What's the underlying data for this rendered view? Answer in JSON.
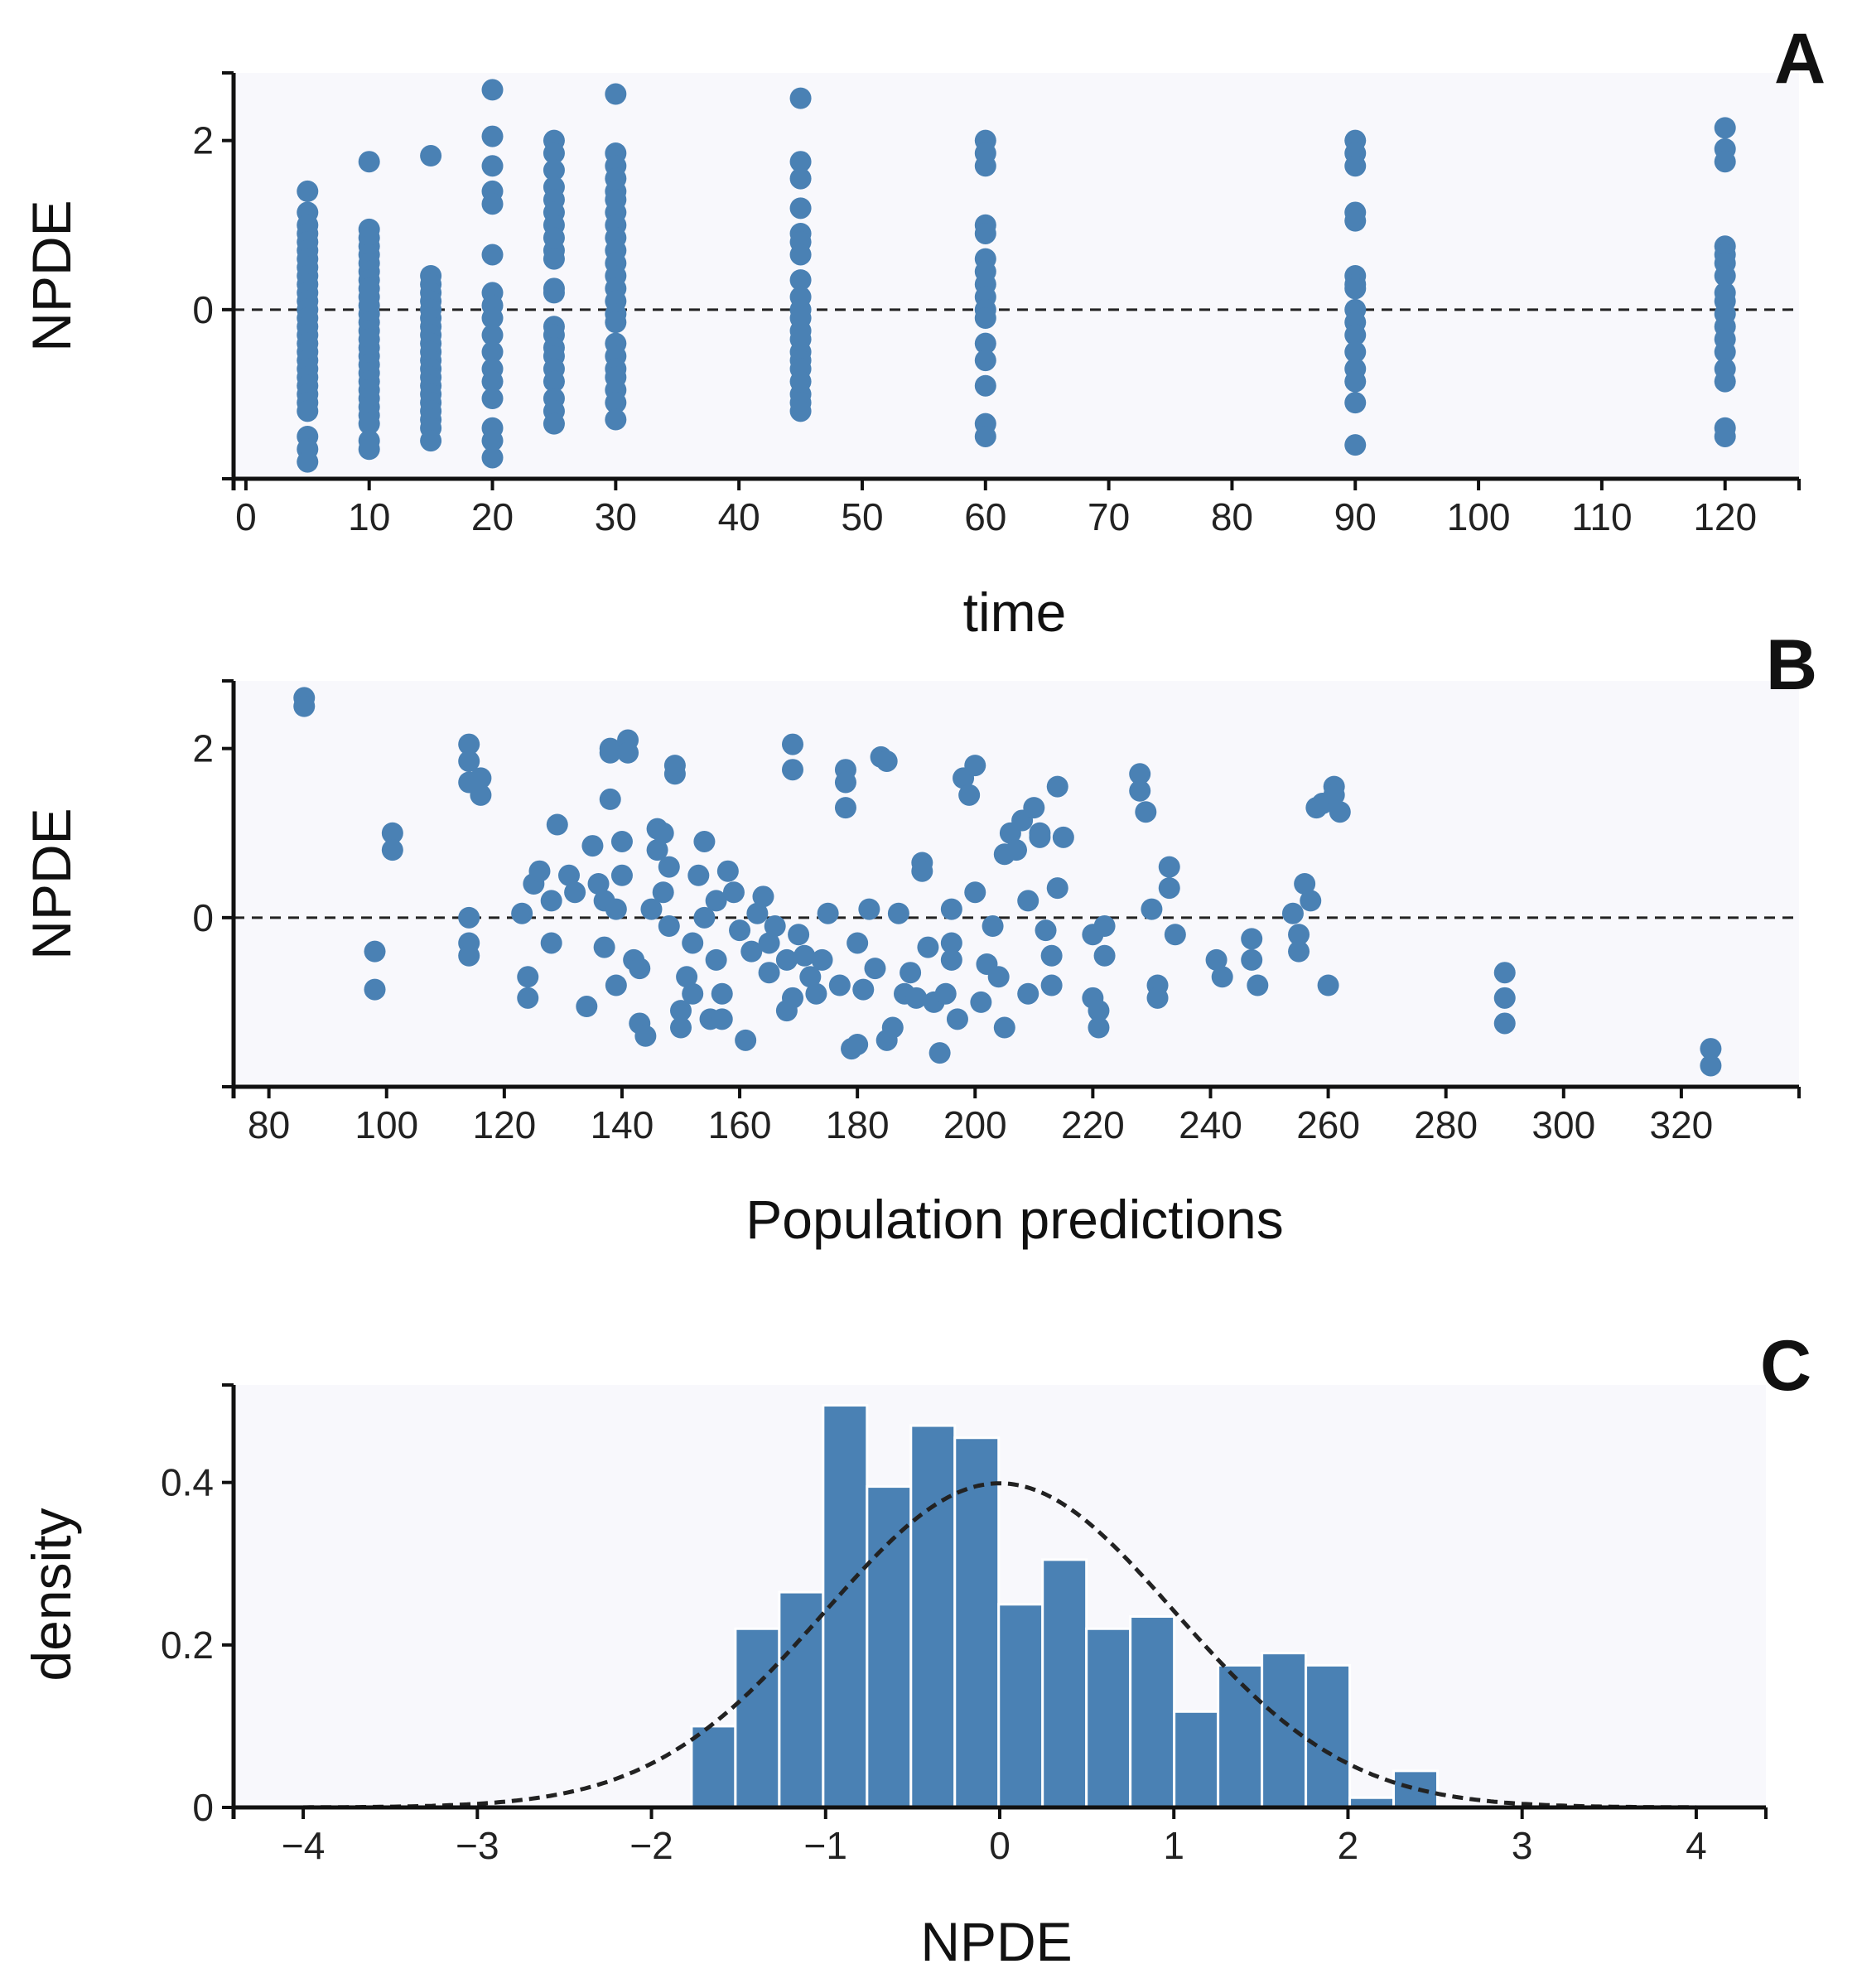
{
  "colors": {
    "marker": "#4a81b4",
    "panel_bg": "#f8f8fc",
    "axis": "#111111",
    "reference_line": "#222222"
  },
  "chart_data": [
    {
      "panel": "A",
      "type": "scatter",
      "xlabel": "time",
      "ylabel": "NPDE",
      "xlim": [
        -1,
        126
      ],
      "ylim": [
        -2.0,
        2.8
      ],
      "xticks": [
        0,
        10,
        20,
        30,
        40,
        50,
        60,
        70,
        80,
        90,
        100,
        110,
        120
      ],
      "yticks": [
        0,
        2
      ],
      "reference_line_y": 0,
      "x_groups": [
        {
          "x": 5,
          "y": [
            1.4,
            1.15,
            1.0,
            0.9,
            0.8,
            0.7,
            0.6,
            0.5,
            0.4,
            0.3,
            0.2,
            0.1,
            0.0,
            -0.1,
            -0.2,
            -0.3,
            -0.4,
            -0.5,
            -0.6,
            -0.7,
            -0.8,
            -0.9,
            -1.0,
            -1.1,
            -1.2,
            -1.5,
            -1.65,
            -1.8
          ]
        },
        {
          "x": 10,
          "y": [
            1.75,
            0.95,
            0.85,
            0.75,
            0.65,
            0.55,
            0.45,
            0.35,
            0.25,
            0.15,
            0.05,
            -0.05,
            -0.15,
            -0.25,
            -0.35,
            -0.45,
            -0.55,
            -0.65,
            -0.75,
            -0.85,
            -0.95,
            -1.05,
            -1.15,
            -1.25,
            -1.35,
            -1.55,
            -1.65
          ]
        },
        {
          "x": 15,
          "y": [
            1.82,
            0.4,
            0.3,
            0.2,
            0.1,
            0.0,
            -0.1,
            -0.2,
            -0.3,
            -0.4,
            -0.5,
            -0.6,
            -0.7,
            -0.8,
            -0.9,
            -1.0,
            -1.1,
            -1.2,
            -1.3,
            -1.4,
            -1.55
          ]
        },
        {
          "x": 20,
          "y": [
            2.6,
            2.05,
            1.7,
            1.4,
            1.25,
            0.65,
            0.2,
            0.05,
            -0.1,
            -0.3,
            -0.5,
            -0.7,
            -0.85,
            -1.05,
            -1.4,
            -1.55,
            -1.75
          ]
        },
        {
          "x": 25,
          "y": [
            2.0,
            1.85,
            1.65,
            1.45,
            1.3,
            1.15,
            1.0,
            0.85,
            0.7,
            0.6,
            0.25,
            0.2,
            -0.2,
            -0.3,
            -0.45,
            -0.55,
            -0.7,
            -0.85,
            -1.05,
            -1.2,
            -1.35
          ]
        },
        {
          "x": 30,
          "y": [
            2.55,
            1.85,
            1.7,
            1.55,
            1.4,
            1.3,
            1.15,
            1.0,
            0.85,
            0.7,
            0.55,
            0.4,
            0.25,
            0.1,
            -0.05,
            -0.15,
            -0.4,
            -0.55,
            -0.7,
            -0.8,
            -0.95,
            -1.1,
            -1.3
          ]
        },
        {
          "x": 45,
          "y": [
            2.5,
            1.75,
            1.55,
            1.2,
            0.9,
            0.8,
            0.65,
            0.35,
            0.15,
            0.0,
            -0.1,
            -0.25,
            -0.35,
            -0.5,
            -0.6,
            -0.7,
            -0.85,
            -1.0,
            -1.1,
            -1.2
          ]
        },
        {
          "x": 60,
          "y": [
            2.0,
            1.85,
            1.7,
            1.0,
            0.9,
            0.6,
            0.45,
            0.3,
            0.15,
            0.0,
            -0.1,
            -0.4,
            -0.6,
            -0.9,
            -1.35,
            -1.5
          ]
        },
        {
          "x": 90,
          "y": [
            2.0,
            1.85,
            1.7,
            1.15,
            1.05,
            0.4,
            0.3,
            0.25,
            0.0,
            -0.15,
            -0.3,
            -0.5,
            -0.7,
            -0.85,
            -1.1,
            -1.6
          ]
        },
        {
          "x": 120,
          "y": [
            2.15,
            1.9,
            1.75,
            0.75,
            0.65,
            0.55,
            0.4,
            0.2,
            0.1,
            -0.05,
            -0.2,
            -0.35,
            -0.5,
            -0.7,
            -0.85,
            -1.4,
            -1.5
          ]
        }
      ]
    },
    {
      "panel": "B",
      "type": "scatter",
      "xlabel": "Population predictions",
      "ylabel": "NPDE",
      "xlim": [
        74,
        340
      ],
      "ylim": [
        -2.0,
        2.8
      ],
      "xticks": [
        80,
        100,
        120,
        140,
        160,
        180,
        200,
        220,
        240,
        260,
        280,
        300,
        320
      ],
      "yticks": [
        0,
        2
      ],
      "reference_line_y": 0,
      "points": [
        [
          86,
          2.6
        ],
        [
          86,
          2.5
        ],
        [
          98,
          -0.4
        ],
        [
          98,
          -0.85
        ],
        [
          101,
          1.0
        ],
        [
          101,
          0.8
        ],
        [
          114,
          2.05
        ],
        [
          114,
          1.85
        ],
        [
          114,
          1.6
        ],
        [
          116,
          1.45
        ],
        [
          116,
          1.65
        ],
        [
          114,
          0.0
        ],
        [
          114,
          -0.3
        ],
        [
          114,
          -0.45
        ],
        [
          123,
          0.05
        ],
        [
          124,
          -0.7
        ],
        [
          124,
          -0.95
        ],
        [
          125,
          0.4
        ],
        [
          126,
          0.55
        ],
        [
          128,
          -0.3
        ],
        [
          128,
          0.2
        ],
        [
          129,
          1.1
        ],
        [
          131,
          0.5
        ],
        [
          132,
          0.3
        ],
        [
          134,
          -1.05
        ],
        [
          135,
          0.85
        ],
        [
          136,
          0.4
        ],
        [
          137,
          0.2
        ],
        [
          137,
          -0.35
        ],
        [
          138,
          1.4
        ],
        [
          138,
          1.95
        ],
        [
          138,
          2.0
        ],
        [
          139,
          0.1
        ],
        [
          139,
          -0.8
        ],
        [
          140,
          0.9
        ],
        [
          140,
          0.5
        ],
        [
          141,
          2.1
        ],
        [
          141,
          1.95
        ],
        [
          142,
          -0.5
        ],
        [
          143,
          -1.25
        ],
        [
          143,
          -0.6
        ],
        [
          144,
          -1.4
        ],
        [
          145,
          0.1
        ],
        [
          146,
          1.05
        ],
        [
          146,
          0.8
        ],
        [
          147,
          1.0
        ],
        [
          147,
          0.3
        ],
        [
          148,
          -0.1
        ],
        [
          148,
          0.6
        ],
        [
          149,
          1.7
        ],
        [
          149,
          1.8
        ],
        [
          150,
          -1.1
        ],
        [
          150,
          -1.3
        ],
        [
          151,
          -0.7
        ],
        [
          152,
          -0.3
        ],
        [
          152,
          -0.9
        ],
        [
          153,
          0.5
        ],
        [
          154,
          0.0
        ],
        [
          154,
          0.9
        ],
        [
          155,
          -1.2
        ],
        [
          156,
          -0.5
        ],
        [
          156,
          0.2
        ],
        [
          157,
          -0.9
        ],
        [
          157,
          -1.2
        ],
        [
          158,
          0.55
        ],
        [
          159,
          0.3
        ],
        [
          160,
          -0.15
        ],
        [
          161,
          -1.45
        ],
        [
          162,
          -0.4
        ],
        [
          163,
          0.05
        ],
        [
          164,
          0.25
        ],
        [
          165,
          -0.3
        ],
        [
          165,
          -0.65
        ],
        [
          166,
          -0.1
        ],
        [
          168,
          -0.5
        ],
        [
          168,
          -1.1
        ],
        [
          169,
          -0.95
        ],
        [
          169,
          2.05
        ],
        [
          169,
          1.75
        ],
        [
          170,
          -0.2
        ],
        [
          171,
          -0.45
        ],
        [
          172,
          -0.7
        ],
        [
          173,
          -0.9
        ],
        [
          174,
          -0.5
        ],
        [
          175,
          0.05
        ],
        [
          177,
          -0.8
        ],
        [
          178,
          1.75
        ],
        [
          178,
          1.6
        ],
        [
          178,
          1.3
        ],
        [
          179,
          -1.55
        ],
        [
          180,
          -1.5
        ],
        [
          180,
          -0.3
        ],
        [
          181,
          -0.85
        ],
        [
          182,
          0.1
        ],
        [
          183,
          -0.6
        ],
        [
          184,
          1.9
        ],
        [
          185,
          1.85
        ],
        [
          185,
          -1.45
        ],
        [
          186,
          -1.3
        ],
        [
          187,
          0.05
        ],
        [
          188,
          -0.9
        ],
        [
          189,
          -0.65
        ],
        [
          190,
          -0.95
        ],
        [
          191,
          0.65
        ],
        [
          191,
          0.55
        ],
        [
          192,
          -0.35
        ],
        [
          193,
          -1.0
        ],
        [
          194,
          -1.6
        ],
        [
          195,
          -0.9
        ],
        [
          196,
          0.1
        ],
        [
          196,
          -0.3
        ],
        [
          196,
          -0.5
        ],
        [
          197,
          -1.2
        ],
        [
          198,
          1.65
        ],
        [
          199,
          1.45
        ],
        [
          200,
          1.8
        ],
        [
          200,
          0.3
        ],
        [
          201,
          -1.0
        ],
        [
          202,
          -0.55
        ],
        [
          203,
          -0.1
        ],
        [
          204,
          -0.7
        ],
        [
          205,
          0.75
        ],
        [
          205,
          -1.3
        ],
        [
          206,
          1.0
        ],
        [
          207,
          0.8
        ],
        [
          208,
          1.15
        ],
        [
          209,
          0.2
        ],
        [
          209,
          -0.9
        ],
        [
          210,
          1.3
        ],
        [
          211,
          1.0
        ],
        [
          211,
          0.95
        ],
        [
          212,
          -0.15
        ],
        [
          213,
          -0.45
        ],
        [
          213,
          -0.8
        ],
        [
          214,
          1.55
        ],
        [
          214,
          0.35
        ],
        [
          215,
          0.95
        ],
        [
          220,
          -0.2
        ],
        [
          220,
          -0.95
        ],
        [
          221,
          -1.1
        ],
        [
          221,
          -1.3
        ],
        [
          222,
          -0.1
        ],
        [
          222,
          -0.45
        ],
        [
          228,
          1.7
        ],
        [
          228,
          1.5
        ],
        [
          229,
          1.25
        ],
        [
          230,
          0.1
        ],
        [
          231,
          -0.8
        ],
        [
          231,
          -0.95
        ],
        [
          233,
          0.6
        ],
        [
          233,
          0.35
        ],
        [
          234,
          -0.2
        ],
        [
          241,
          -0.5
        ],
        [
          242,
          -0.7
        ],
        [
          247,
          -0.25
        ],
        [
          247,
          -0.5
        ],
        [
          248,
          -0.8
        ],
        [
          254,
          0.05
        ],
        [
          255,
          -0.2
        ],
        [
          255,
          -0.4
        ],
        [
          256,
          0.4
        ],
        [
          257,
          0.2
        ],
        [
          258,
          1.3
        ],
        [
          259,
          1.35
        ],
        [
          260,
          -0.8
        ],
        [
          261,
          1.55
        ],
        [
          261,
          1.45
        ],
        [
          262,
          1.25
        ],
        [
          290,
          -0.65
        ],
        [
          290,
          -0.95
        ],
        [
          290,
          -1.25
        ],
        [
          325,
          -1.55
        ],
        [
          325,
          -1.75
        ]
      ]
    },
    {
      "panel": "C",
      "type": "histogram",
      "xlabel": "NPDE",
      "ylabel": "density",
      "xlim": [
        -4.4,
        4.4
      ],
      "ylim": [
        0,
        0.52
      ],
      "xticks": [
        -4,
        -3,
        -2,
        -1,
        0,
        1,
        2,
        3,
        4
      ],
      "xtick_labels": [
        "−4",
        "−3",
        "−2",
        "−1",
        "0",
        "1",
        "2",
        "3",
        "4"
      ],
      "yticks": [
        0,
        0.2,
        0.4
      ],
      "ytick_labels": [
        "0",
        "0.2",
        "0.4"
      ],
      "bin_width": 0.252,
      "bin_start": -1.77,
      "densities": [
        0.1,
        0.22,
        0.265,
        0.495,
        0.395,
        0.47,
        0.455,
        0.25,
        0.305,
        0.22,
        0.235,
        0.118,
        0.175,
        0.19,
        0.175,
        0.012,
        0.045
      ],
      "overlay": {
        "type": "normal_pdf",
        "mean": 0,
        "sd": 1,
        "style": "dashed"
      }
    }
  ]
}
